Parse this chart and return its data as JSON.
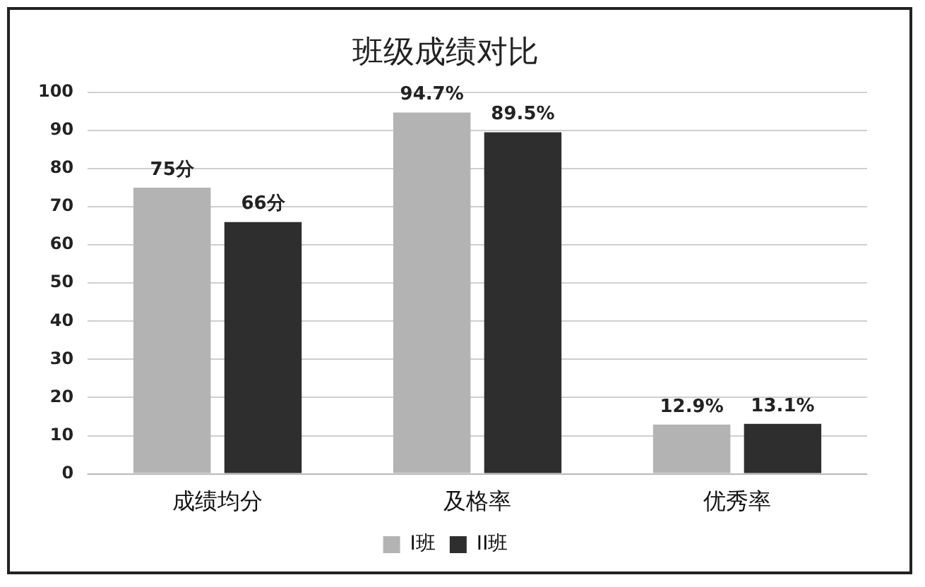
{
  "chart_data": {
    "type": "bar",
    "title": "班级成绩对比",
    "categories": [
      "成绩均分",
      "及格率",
      "优秀率"
    ],
    "series": [
      {
        "name": "I班",
        "color": "#b3b3b3",
        "values": [
          75,
          94.7,
          12.9
        ],
        "value_labels": [
          "75分",
          "94.7%",
          "12.9%"
        ]
      },
      {
        "name": "II班",
        "color": "#2e2e2e",
        "values": [
          66,
          89.5,
          13.1
        ],
        "value_labels": [
          "66分",
          "89.5%",
          "13.1%"
        ]
      }
    ],
    "ylim": [
      0,
      100
    ],
    "yticks": [
      0,
      10,
      20,
      30,
      40,
      50,
      60,
      70,
      80,
      90,
      100
    ],
    "grid": "y",
    "legend": "bottom"
  }
}
